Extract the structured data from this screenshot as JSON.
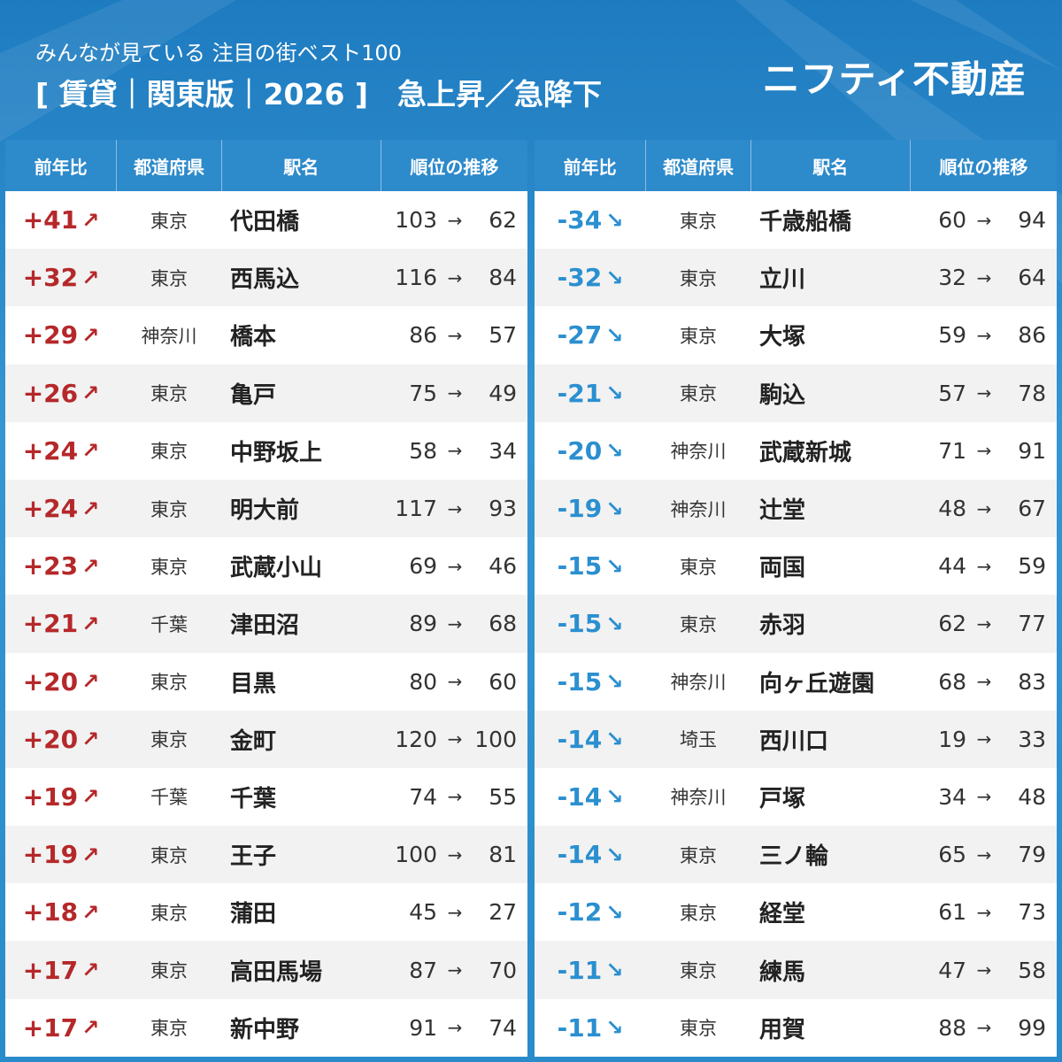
{
  "header": {
    "subtitle": "みんなが見ている 注目の街ベスト100",
    "title": "[ 賃貸｜関東版｜2026 ]　急上昇／急降下",
    "brand": "ニフティ不動産"
  },
  "colors": {
    "background": "#2787c6",
    "header_row": "#2d8acb",
    "rise": "#b5282a",
    "fall": "#2b8fd0",
    "row_alt": "#f2f2f2"
  },
  "columns": {
    "change": "前年比",
    "prefecture": "都道府県",
    "station": "駅名",
    "rank_change": "順位の推移"
  },
  "rank_arrow": "→",
  "rise_arrow": "↗",
  "fall_arrow": "↘",
  "rising": [
    {
      "change": "+41",
      "pref": "東京",
      "station": "代田橋",
      "from": "103",
      "to": "62"
    },
    {
      "change": "+32",
      "pref": "東京",
      "station": "西馬込",
      "from": "116",
      "to": "84"
    },
    {
      "change": "+29",
      "pref": "神奈川",
      "station": "橋本",
      "from": "86",
      "to": "57"
    },
    {
      "change": "+26",
      "pref": "東京",
      "station": "亀戸",
      "from": "75",
      "to": "49"
    },
    {
      "change": "+24",
      "pref": "東京",
      "station": "中野坂上",
      "from": "58",
      "to": "34"
    },
    {
      "change": "+24",
      "pref": "東京",
      "station": "明大前",
      "from": "117",
      "to": "93"
    },
    {
      "change": "+23",
      "pref": "東京",
      "station": "武蔵小山",
      "from": "69",
      "to": "46"
    },
    {
      "change": "+21",
      "pref": "千葉",
      "station": "津田沼",
      "from": "89",
      "to": "68"
    },
    {
      "change": "+20",
      "pref": "東京",
      "station": "目黒",
      "from": "80",
      "to": "60"
    },
    {
      "change": "+20",
      "pref": "東京",
      "station": "金町",
      "from": "120",
      "to": "100"
    },
    {
      "change": "+19",
      "pref": "千葉",
      "station": "千葉",
      "from": "74",
      "to": "55"
    },
    {
      "change": "+19",
      "pref": "東京",
      "station": "王子",
      "from": "100",
      "to": "81"
    },
    {
      "change": "+18",
      "pref": "東京",
      "station": "蒲田",
      "from": "45",
      "to": "27"
    },
    {
      "change": "+17",
      "pref": "東京",
      "station": "高田馬場",
      "from": "87",
      "to": "70"
    },
    {
      "change": "+17",
      "pref": "東京",
      "station": "新中野",
      "from": "91",
      "to": "74"
    }
  ],
  "falling": [
    {
      "change": "-34",
      "pref": "東京",
      "station": "千歳船橋",
      "from": "60",
      "to": "94"
    },
    {
      "change": "-32",
      "pref": "東京",
      "station": "立川",
      "from": "32",
      "to": "64"
    },
    {
      "change": "-27",
      "pref": "東京",
      "station": "大塚",
      "from": "59",
      "to": "86"
    },
    {
      "change": "-21",
      "pref": "東京",
      "station": "駒込",
      "from": "57",
      "to": "78"
    },
    {
      "change": "-20",
      "pref": "神奈川",
      "station": "武蔵新城",
      "from": "71",
      "to": "91"
    },
    {
      "change": "-19",
      "pref": "神奈川",
      "station": "辻堂",
      "from": "48",
      "to": "67"
    },
    {
      "change": "-15",
      "pref": "東京",
      "station": "両国",
      "from": "44",
      "to": "59"
    },
    {
      "change": "-15",
      "pref": "東京",
      "station": "赤羽",
      "from": "62",
      "to": "77"
    },
    {
      "change": "-15",
      "pref": "神奈川",
      "station": "向ヶ丘遊園",
      "from": "68",
      "to": "83"
    },
    {
      "change": "-14",
      "pref": "埼玉",
      "station": "西川口",
      "from": "19",
      "to": "33"
    },
    {
      "change": "-14",
      "pref": "神奈川",
      "station": "戸塚",
      "from": "34",
      "to": "48"
    },
    {
      "change": "-14",
      "pref": "東京",
      "station": "三ノ輪",
      "from": "65",
      "to": "79"
    },
    {
      "change": "-12",
      "pref": "東京",
      "station": "経堂",
      "from": "61",
      "to": "73"
    },
    {
      "change": "-11",
      "pref": "東京",
      "station": "練馬",
      "from": "47",
      "to": "58"
    },
    {
      "change": "-11",
      "pref": "東京",
      "station": "用賀",
      "from": "88",
      "to": "99"
    }
  ]
}
